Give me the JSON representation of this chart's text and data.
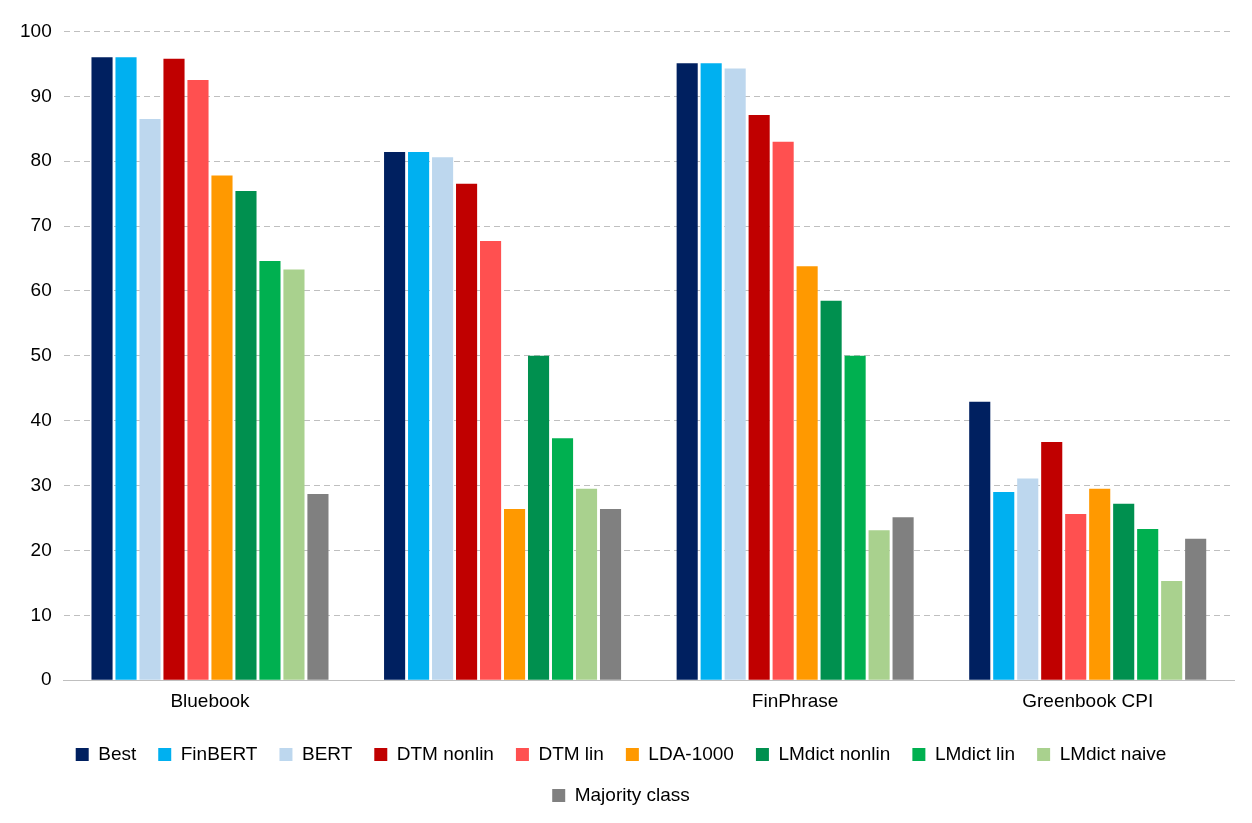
{
  "chart_data": {
    "type": "bar",
    "categories": [
      "Bluebook",
      null,
      "FinPhrase",
      "Greenbook CPI"
    ],
    "series": [
      {
        "name": "Best",
        "color": "#002060",
        "values": [
          96,
          81.4,
          95.1,
          42.9
        ]
      },
      {
        "name": "FinBERT",
        "color": "#00b0f0",
        "values": [
          96,
          81.4,
          95.1,
          29
        ]
      },
      {
        "name": "BERT",
        "color": "#bdd7ee",
        "values": [
          86.5,
          80.6,
          94.3,
          31.1
        ]
      },
      {
        "name": "DTM nonlin",
        "color": "#c00000",
        "values": [
          95.8,
          76.5,
          87.1,
          36.7
        ]
      },
      {
        "name": "DTM lin",
        "color": "#ff5050",
        "values": [
          92.5,
          67.7,
          83,
          25.6
        ]
      },
      {
        "name": "LDA-1000",
        "color": "#ff9900",
        "values": [
          77.8,
          26.4,
          63.8,
          29.5
        ]
      },
      {
        "name": "LMdict nonlin",
        "color": "#00904f",
        "values": [
          75.4,
          50,
          58.5,
          27.2
        ]
      },
      {
        "name": "LMdict lin",
        "color": "#00b050",
        "values": [
          64.6,
          37.3,
          50,
          23.3
        ]
      },
      {
        "name": "LMdict naive",
        "color": "#a9d18e",
        "values": [
          63.3,
          29.5,
          23.1,
          15.3
        ]
      },
      {
        "name": "Majority class",
        "color": "#808080",
        "values": [
          28.7,
          26.4,
          25.1,
          21.8
        ]
      }
    ],
    "ylim": [
      0,
      100
    ],
    "yticks": [
      0,
      10,
      20,
      30,
      40,
      50,
      60,
      70,
      80,
      90,
      100
    ],
    "grid": "y",
    "legend": "bottom"
  }
}
